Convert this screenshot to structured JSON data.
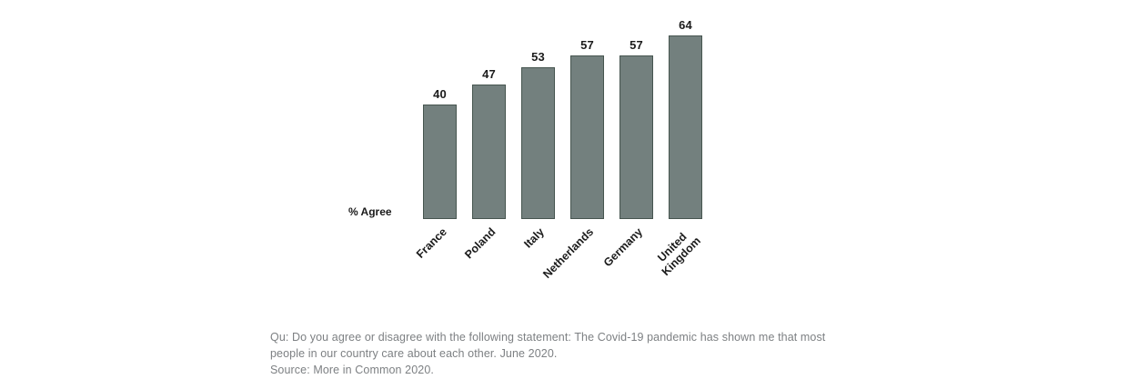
{
  "chart_data": {
    "type": "bar",
    "categories": [
      "France",
      "Poland",
      "Italy",
      "Netherlands",
      "Germany",
      "United\nKingdom"
    ],
    "values": [
      40,
      47,
      53,
      57,
      57,
      64
    ],
    "title": "",
    "xlabel": "",
    "ylabel": "% Agree",
    "ylim": [
      0,
      64
    ],
    "grid": false,
    "legend_position": "none",
    "value_labels_shown": true,
    "x_label_rotation_deg": -45,
    "bar_color": "#73807E",
    "bar_border_color": "#46554F",
    "label_color": "#1b1b1b",
    "caption_color": "#7d8083"
  },
  "caption": {
    "lines": [
      "Qu: Do you agree or disagree with the following statement: The Covid-19 pandemic has shown me that most",
      "people in our country care about each other. June 2020.",
      "Source: More in Common 2020."
    ]
  }
}
